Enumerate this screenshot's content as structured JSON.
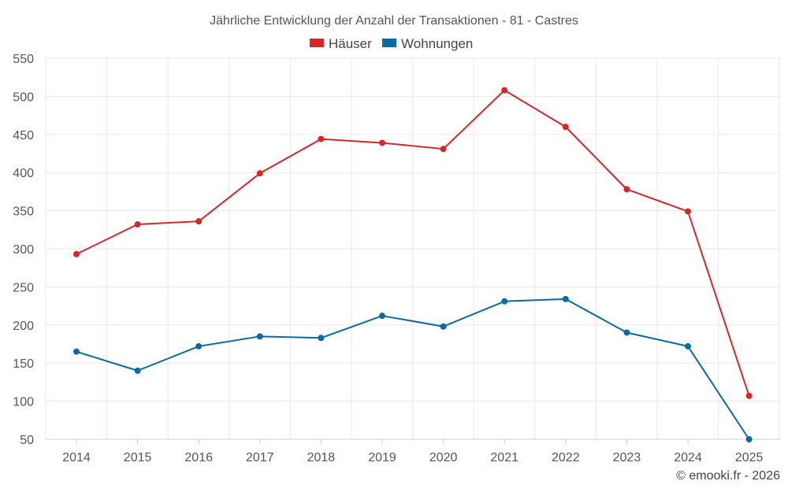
{
  "chart_data": {
    "type": "line",
    "title": "Jährliche Entwicklung der Anzahl der Transaktionen - 81 - Castres",
    "xlabel": "",
    "ylabel": "",
    "categories": [
      "2014",
      "2015",
      "2016",
      "2017",
      "2018",
      "2019",
      "2020",
      "2021",
      "2022",
      "2023",
      "2024",
      "2025"
    ],
    "ylim": [
      50,
      550
    ],
    "yticks": [
      50,
      100,
      150,
      200,
      250,
      300,
      350,
      400,
      450,
      500,
      550
    ],
    "grid": true,
    "legend_position": "top-center",
    "series": [
      {
        "name": "Häuser",
        "color": "#d62728",
        "values": [
          293,
          332,
          336,
          399,
          444,
          439,
          431,
          508,
          460,
          378,
          349,
          107
        ]
      },
      {
        "name": "Wohnungen",
        "color": "#0b6aa2",
        "values": [
          165,
          140,
          172,
          185,
          183,
          212,
          198,
          231,
          234,
          190,
          172,
          50
        ]
      }
    ],
    "credit": "© emooki.fr - 2026"
  }
}
